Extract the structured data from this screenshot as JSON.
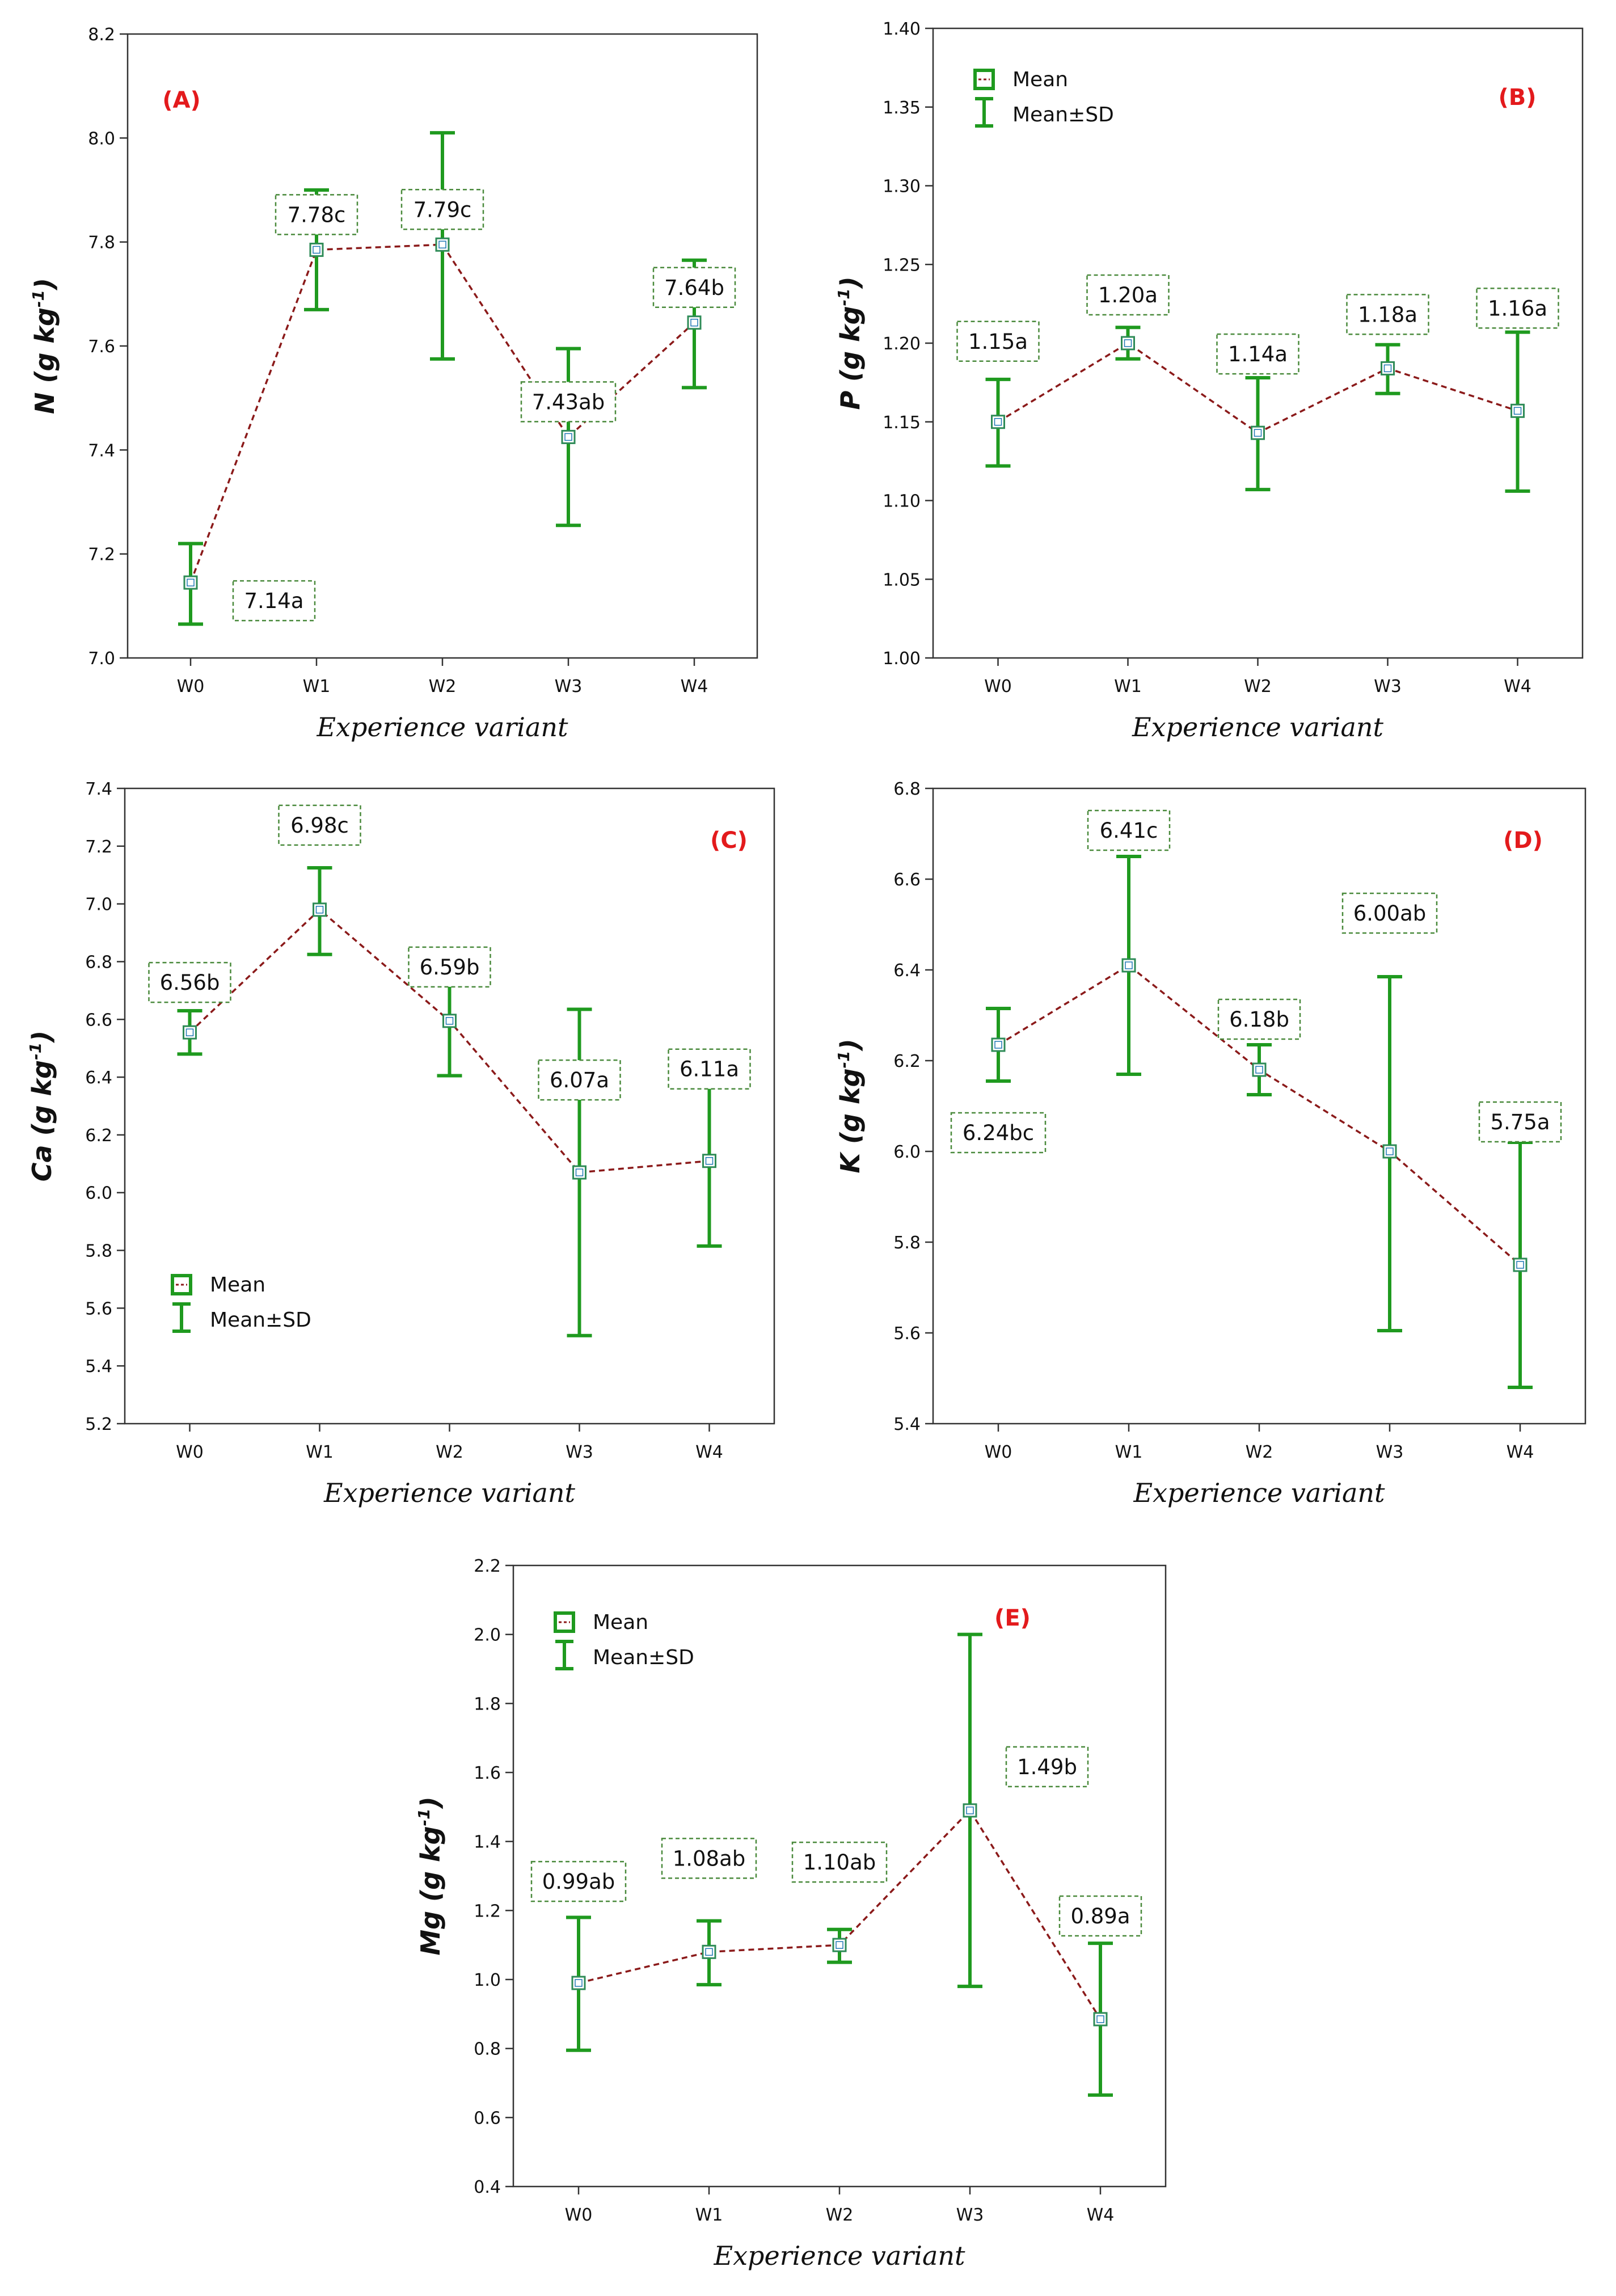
{
  "colors": {
    "error_bar": "#1f9a1f",
    "marker": "#2e8b57",
    "marker_inner": "#1f77b4",
    "trend_line": "#8b1a1a",
    "tag": "#e31a1c",
    "annotation_border": "#4a8a3c"
  },
  "legend": {
    "mean_label": "Mean",
    "sd_label": "Mean±SD"
  },
  "chart_data": [
    {
      "id": "A",
      "tag": "(A)",
      "type": "line",
      "element": "N",
      "ylabel_unit": " (g kg",
      "ylabel_sup": "-1",
      "ylabel_close": ")",
      "xlabel": "Experience variant",
      "categories": [
        "W0",
        "W1",
        "W2",
        "W3",
        "W4"
      ],
      "mean": [
        7.145,
        7.785,
        7.795,
        7.425,
        7.645
      ],
      "sd_low": [
        7.065,
        7.67,
        7.575,
        7.255,
        7.52
      ],
      "sd_high": [
        7.22,
        7.9,
        8.01,
        7.595,
        7.765
      ],
      "labels": [
        "7.14a",
        "7.78c",
        "7.79c",
        "7.43ab",
        "7.64b"
      ],
      "ylim": [
        7.0,
        8.2
      ],
      "yticks": [
        "7.0",
        "7.2",
        "7.4",
        "7.6",
        "7.8",
        "8.0",
        "8.2"
      ],
      "legend": false
    },
    {
      "id": "B",
      "tag": "(B)",
      "type": "line",
      "element": "P",
      "ylabel_unit": " (g kg",
      "ylabel_sup": "-1",
      "ylabel_close": ")",
      "xlabel": "Experience variant",
      "categories": [
        "W0",
        "W1",
        "W2",
        "W3",
        "W4"
      ],
      "mean": [
        1.15,
        1.2,
        1.143,
        1.184,
        1.157
      ],
      "sd_low": [
        1.122,
        1.19,
        1.107,
        1.168,
        1.106
      ],
      "sd_high": [
        1.177,
        1.21,
        1.178,
        1.199,
        1.207
      ],
      "labels": [
        "1.15a",
        "1.20a",
        "1.14a",
        "1.18a",
        "1.16a"
      ],
      "ylim": [
        1.0,
        1.4
      ],
      "yticks": [
        "1.00",
        "1.05",
        "1.10",
        "1.15",
        "1.20",
        "1.25",
        "1.30",
        "1.35",
        "1.40"
      ],
      "legend": true
    },
    {
      "id": "C",
      "tag": "(C)",
      "type": "line",
      "element": "Ca",
      "ylabel_unit": " (g kg",
      "ylabel_sup": "-1",
      "ylabel_close": ")",
      "xlabel": "Experience variant",
      "categories": [
        "W0",
        "W1",
        "W2",
        "W3",
        "W4"
      ],
      "mean": [
        6.555,
        6.98,
        6.595,
        6.07,
        6.11
      ],
      "sd_low": [
        6.48,
        6.825,
        6.405,
        5.505,
        5.815
      ],
      "sd_high": [
        6.63,
        7.125,
        6.775,
        6.635,
        6.405
      ],
      "labels": [
        "6.56b",
        "6.98c",
        "6.59b",
        "6.07a",
        "6.11a"
      ],
      "ylim": [
        5.2,
        7.4
      ],
      "yticks": [
        "5.2",
        "5.4",
        "5.6",
        "5.8",
        "6.0",
        "6.2",
        "6.4",
        "6.6",
        "6.8",
        "7.0",
        "7.2",
        "7.4"
      ],
      "legend": true
    },
    {
      "id": "D",
      "tag": "(D)",
      "type": "line",
      "element": "K",
      "ylabel_unit": " (g kg",
      "ylabel_sup": "-1",
      "ylabel_close": ")",
      "xlabel": "Experience variant",
      "categories": [
        "W0",
        "W1",
        "W2",
        "W3",
        "W4"
      ],
      "mean": [
        6.235,
        6.41,
        6.18,
        6.0,
        5.75
      ],
      "sd_low": [
        6.155,
        6.17,
        6.125,
        5.605,
        5.48
      ],
      "sd_high": [
        6.315,
        6.65,
        6.235,
        6.385,
        6.02
      ],
      "labels": [
        "6.24bc",
        "6.41c",
        "6.18b",
        "6.00ab",
        "5.75a"
      ],
      "ylim": [
        5.4,
        6.8
      ],
      "yticks": [
        "5.4",
        "5.6",
        "5.8",
        "6.0",
        "6.2",
        "6.4",
        "6.6",
        "6.8"
      ],
      "legend": false
    },
    {
      "id": "E",
      "tag": "(E)",
      "type": "line",
      "element": "Mg",
      "ylabel_unit": " (g kg",
      "ylabel_sup": "-1",
      "ylabel_close": ")",
      "xlabel": "Experience variant",
      "categories": [
        "W0",
        "W1",
        "W2",
        "W3",
        "W4"
      ],
      "mean": [
        0.99,
        1.08,
        1.1,
        1.49,
        0.885
      ],
      "sd_low": [
        0.795,
        0.985,
        1.05,
        0.98,
        0.665
      ],
      "sd_high": [
        1.18,
        1.17,
        1.145,
        2.0,
        1.105
      ],
      "labels": [
        "0.99ab",
        "1.08ab",
        "1.10ab",
        "1.49b",
        "0.89a"
      ],
      "ylim": [
        0.4,
        2.2
      ],
      "yticks": [
        "0.4",
        "0.6",
        "0.8",
        "1.0",
        "1.2",
        "1.4",
        "1.6",
        "1.8",
        "2.0",
        "2.2"
      ],
      "legend": true
    }
  ]
}
